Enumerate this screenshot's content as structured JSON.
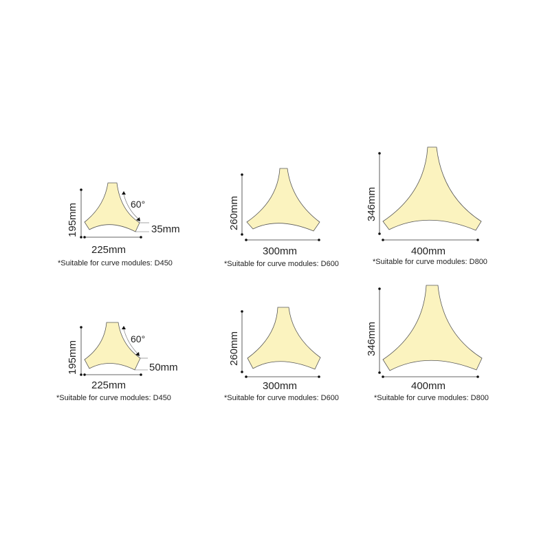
{
  "fill_color": "#fbf3bf",
  "angle_label": "60°",
  "modules": [
    {
      "width_label": "225mm",
      "height_label": "195mm",
      "thickness_label": "35mm",
      "note": "*Suitable for curve modules: D450"
    },
    {
      "width_label": "300mm",
      "height_label": "260mm",
      "note": "*Suitable for curve modules: D600"
    },
    {
      "width_label": "400mm",
      "height_label": "346mm",
      "note": "*Suitable for curve modules: D800"
    },
    {
      "width_label": "225mm",
      "height_label": "195mm",
      "thickness_label": "50mm",
      "note": "*Suitable for curve modules: D450"
    },
    {
      "width_label": "300mm",
      "height_label": "260mm",
      "note": "*Suitable for curve modules: D600"
    },
    {
      "width_label": "400mm",
      "height_label": "346mm",
      "note": "*Suitable for curve modules: D800"
    }
  ]
}
